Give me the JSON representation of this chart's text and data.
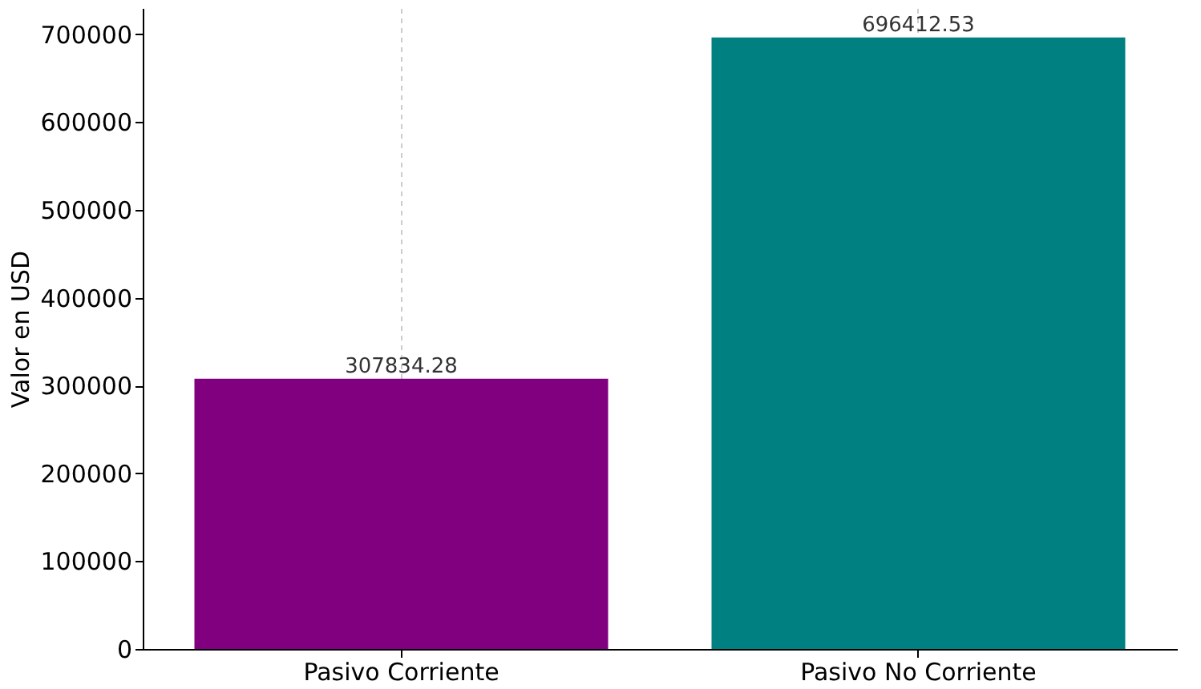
{
  "chart_data": {
    "type": "bar",
    "categories": [
      "Pasivo Corriente",
      "Pasivo No Corriente"
    ],
    "values": [
      307834.28,
      696412.53
    ],
    "colors": [
      "#800080",
      "#008080"
    ],
    "ylabel": "Valor en USD",
    "ylim": [
      0,
      730000
    ],
    "yticks": [
      0,
      100000,
      200000,
      300000,
      400000,
      500000,
      600000,
      700000
    ],
    "grid": "x",
    "data_labels": true
  }
}
